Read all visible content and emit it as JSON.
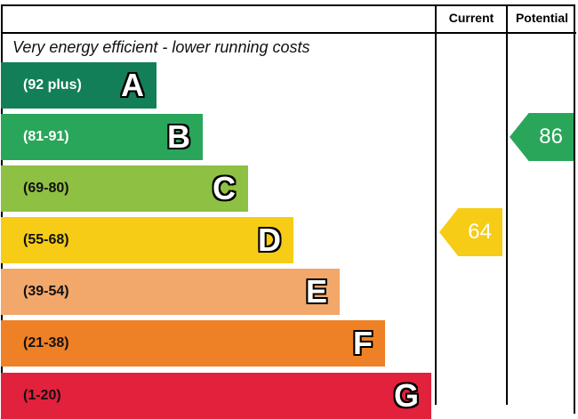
{
  "header": {
    "current_label": "Current",
    "potential_label": "Potential"
  },
  "chart_data": {
    "type": "bar",
    "title": "Very energy efficient - lower running costs",
    "bands": [
      {
        "letter": "A",
        "range": "(92 plus)",
        "color": "#137f59",
        "text_color": "#ffffff"
      },
      {
        "letter": "B",
        "range": "(81-91)",
        "color": "#2aa65b",
        "text_color": "#ffffff"
      },
      {
        "letter": "C",
        "range": "(69-80)",
        "color": "#8ec043",
        "text_color": "#111111"
      },
      {
        "letter": "D",
        "range": "(55-68)",
        "color": "#f6cc16",
        "text_color": "#111111"
      },
      {
        "letter": "E",
        "range": "(39-54)",
        "color": "#f2a86b",
        "text_color": "#111111"
      },
      {
        "letter": "F",
        "range": "(21-38)",
        "color": "#ee8126",
        "text_color": "#111111"
      },
      {
        "letter": "G",
        "range": "(1-20)",
        "color": "#e2213d",
        "text_color": "#111111"
      }
    ],
    "current": {
      "value": "64",
      "band": "D",
      "color": "#f6cc16"
    },
    "potential": {
      "value": "86",
      "band": "B",
      "color": "#2aa65b"
    }
  }
}
